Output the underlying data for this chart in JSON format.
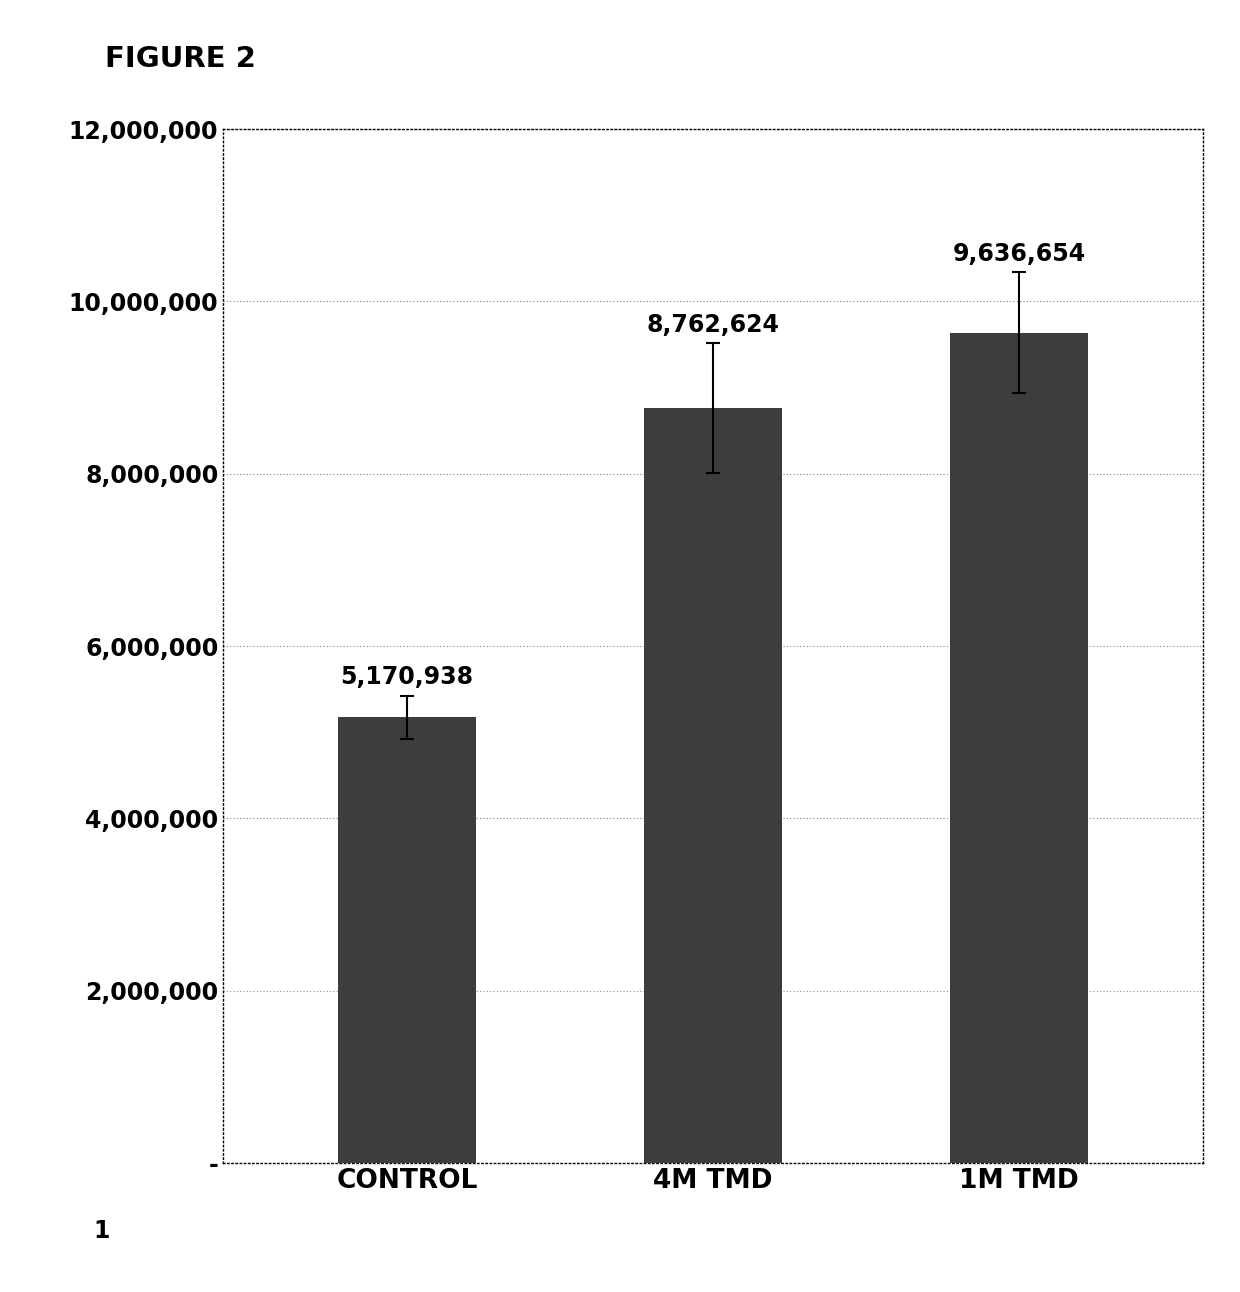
{
  "categories": [
    "CONTROL",
    "4M TMD",
    "1M TMD"
  ],
  "values": [
    5170938,
    8762624,
    9636654
  ],
  "errors": [
    250000,
    750000,
    700000
  ],
  "bar_color": "#3d3d3d",
  "bar_width": 0.45,
  "title": "FIGURE 2",
  "ylim": [
    0,
    12000000
  ],
  "yticks": [
    0,
    2000000,
    4000000,
    6000000,
    8000000,
    10000000,
    12000000
  ],
  "ytick_labels": [
    "-",
    "2,000,000",
    "4,000,000",
    "6,000,000",
    "8,000,000",
    "10,000,000",
    "12,000,000"
  ],
  "value_labels": [
    "5,170,938",
    "8,762,624",
    "9,636,654"
  ],
  "background_color": "#ffffff",
  "figure_bg": "#ffffff",
  "grid_color": "#888888",
  "label_fontsize": 19,
  "title_fontsize": 21,
  "tick_fontsize": 17,
  "annotation_fontsize": 17,
  "x_positions": [
    0,
    1,
    2
  ]
}
